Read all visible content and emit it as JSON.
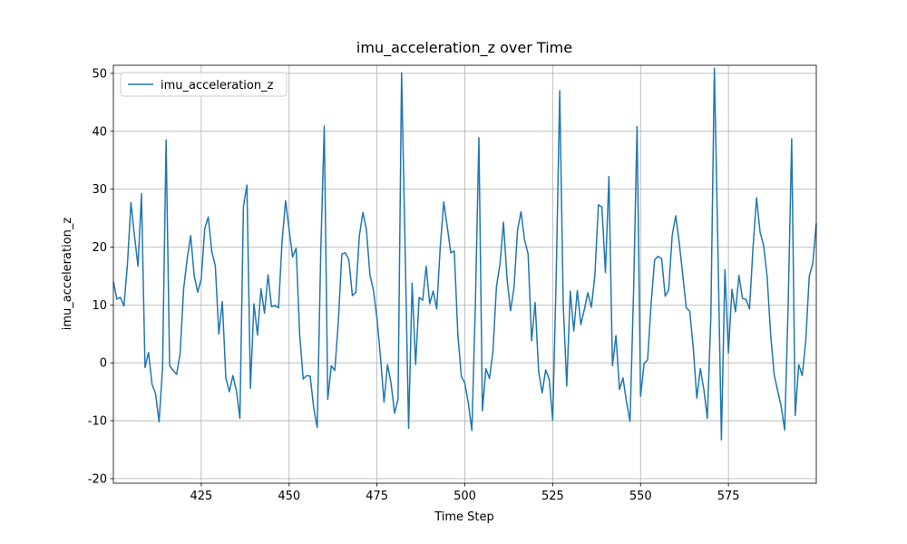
{
  "chart_data": {
    "type": "line",
    "title": "imu_acceleration_z over Time",
    "xlabel": "Time Step",
    "ylabel": "imu_acceleration_z",
    "x": [
      400,
      401,
      402,
      403,
      404,
      405,
      406,
      407,
      408,
      409,
      410,
      411,
      412,
      413,
      414,
      415,
      416,
      417,
      418,
      419,
      420,
      421,
      422,
      423,
      424,
      425,
      426,
      427,
      428,
      429,
      430,
      431,
      432,
      433,
      434,
      435,
      436,
      437,
      438,
      439,
      440,
      441,
      442,
      443,
      444,
      445,
      446,
      447,
      448,
      449,
      450,
      451,
      452,
      453,
      454,
      455,
      456,
      457,
      458,
      459,
      460,
      461,
      462,
      463,
      464,
      465,
      466,
      467,
      468,
      469,
      470,
      471,
      472,
      473,
      474,
      475,
      476,
      477,
      478,
      479,
      480,
      481,
      482,
      483,
      484,
      485,
      486,
      487,
      488,
      489,
      490,
      491,
      492,
      493,
      494,
      495,
      496,
      497,
      498,
      499,
      500,
      501,
      502,
      503,
      504,
      505,
      506,
      507,
      508,
      509,
      510,
      511,
      512,
      513,
      514,
      515,
      516,
      517,
      518,
      519,
      520,
      521,
      522,
      523,
      524,
      525,
      526,
      527,
      528,
      529,
      530,
      531,
      532,
      533,
      534,
      535,
      536,
      537,
      538,
      539,
      540,
      541,
      542,
      543,
      544,
      545,
      546,
      547,
      548,
      549,
      550,
      551,
      552,
      553,
      554,
      555,
      556,
      557,
      558,
      559,
      560,
      561,
      562,
      563,
      564,
      565,
      566,
      567,
      568,
      569,
      570,
      571,
      572,
      573,
      574,
      575,
      576,
      577,
      578,
      579,
      580,
      581,
      582,
      583,
      584,
      585,
      586,
      587,
      588,
      589,
      590,
      591,
      592,
      593,
      594,
      595,
      596,
      597,
      598,
      599,
      600
    ],
    "series": [
      {
        "name": "imu_acceleration_z",
        "color": "#1f77b4",
        "values": [
          14,
          11,
          11.3,
          9.8,
          17,
          27.7,
          22,
          16.7,
          29.2,
          -0.8,
          1.8,
          -3.7,
          -5.3,
          -10.2,
          -0.8,
          38.5,
          -0.5,
          -1.3,
          -2,
          1.7,
          12.8,
          18,
          22,
          15,
          12.2,
          14.5,
          23.2,
          25.2,
          19.2,
          16.8,
          5,
          10.6,
          -2.6,
          -5,
          -2.2,
          -4.8,
          -9.6,
          27,
          30.7,
          -4.4,
          10.2,
          4.8,
          12.8,
          8.6,
          15.2,
          9.7,
          9.9,
          9.5,
          21,
          28,
          23,
          18.3,
          19.8,
          5,
          -2.8,
          -2.2,
          -2.3,
          -7.8,
          -11.2,
          19,
          40.9,
          -6.3,
          -0.5,
          -1.3,
          7,
          18.8,
          19,
          17.8,
          11.6,
          12.2,
          22,
          26,
          23,
          15.2,
          12.5,
          7.7,
          1,
          -6.8,
          -0.3,
          -3.5,
          -8.7,
          -6.3,
          50.1,
          20,
          -11.3,
          13.8,
          -0.3,
          11.3,
          10.8,
          16.7,
          10.2,
          12.4,
          9.3,
          20,
          27.8,
          23.5,
          19,
          19.3,
          5,
          -2.3,
          -3.5,
          -7,
          -11.7,
          10,
          38.9,
          -8.3,
          -1,
          -2.7,
          2,
          13.2,
          17,
          24.3,
          14.6,
          9,
          13,
          23,
          26.1,
          21.2,
          18.8,
          3.8,
          10.4,
          -1.5,
          -5.2,
          -1.2,
          -2.8,
          -9.9,
          15,
          47,
          10,
          -4,
          12.4,
          5.5,
          12.5,
          6.6,
          9.2,
          12.1,
          9.6,
          15.1,
          27.3,
          26.9,
          15.6,
          32.2,
          -0.5,
          4.7,
          -4.6,
          -2.6,
          -6.8,
          -10.1,
          12,
          40.8,
          -5.8,
          -0.1,
          0.5,
          10.2,
          17.8,
          18.4,
          18,
          11.5,
          12.6,
          22,
          25.4,
          20.8,
          15.2,
          9.5,
          8.9,
          2.5,
          -6.1,
          -1,
          -4.6,
          -9.6,
          8,
          50.9,
          20,
          -13.3,
          16.1,
          1.7,
          12.7,
          8.8,
          15.1,
          11.1,
          11,
          9.3,
          20,
          28.5,
          22.6,
          20.3,
          15,
          5,
          -2,
          -4.8,
          -7.5,
          -11.6,
          10,
          38.7,
          -9.1,
          -0.3,
          -2.2,
          3.8,
          15,
          17.2,
          24.1
        ]
      }
    ],
    "xlim": [
      400,
      600
    ],
    "ylim": [
      -20.8,
      51.4
    ],
    "xticks": [
      425,
      450,
      475,
      500,
      525,
      550,
      575
    ],
    "yticks": [
      -20,
      -10,
      0,
      10,
      20,
      30,
      40,
      50
    ],
    "grid": true,
    "legend": "upper left"
  }
}
